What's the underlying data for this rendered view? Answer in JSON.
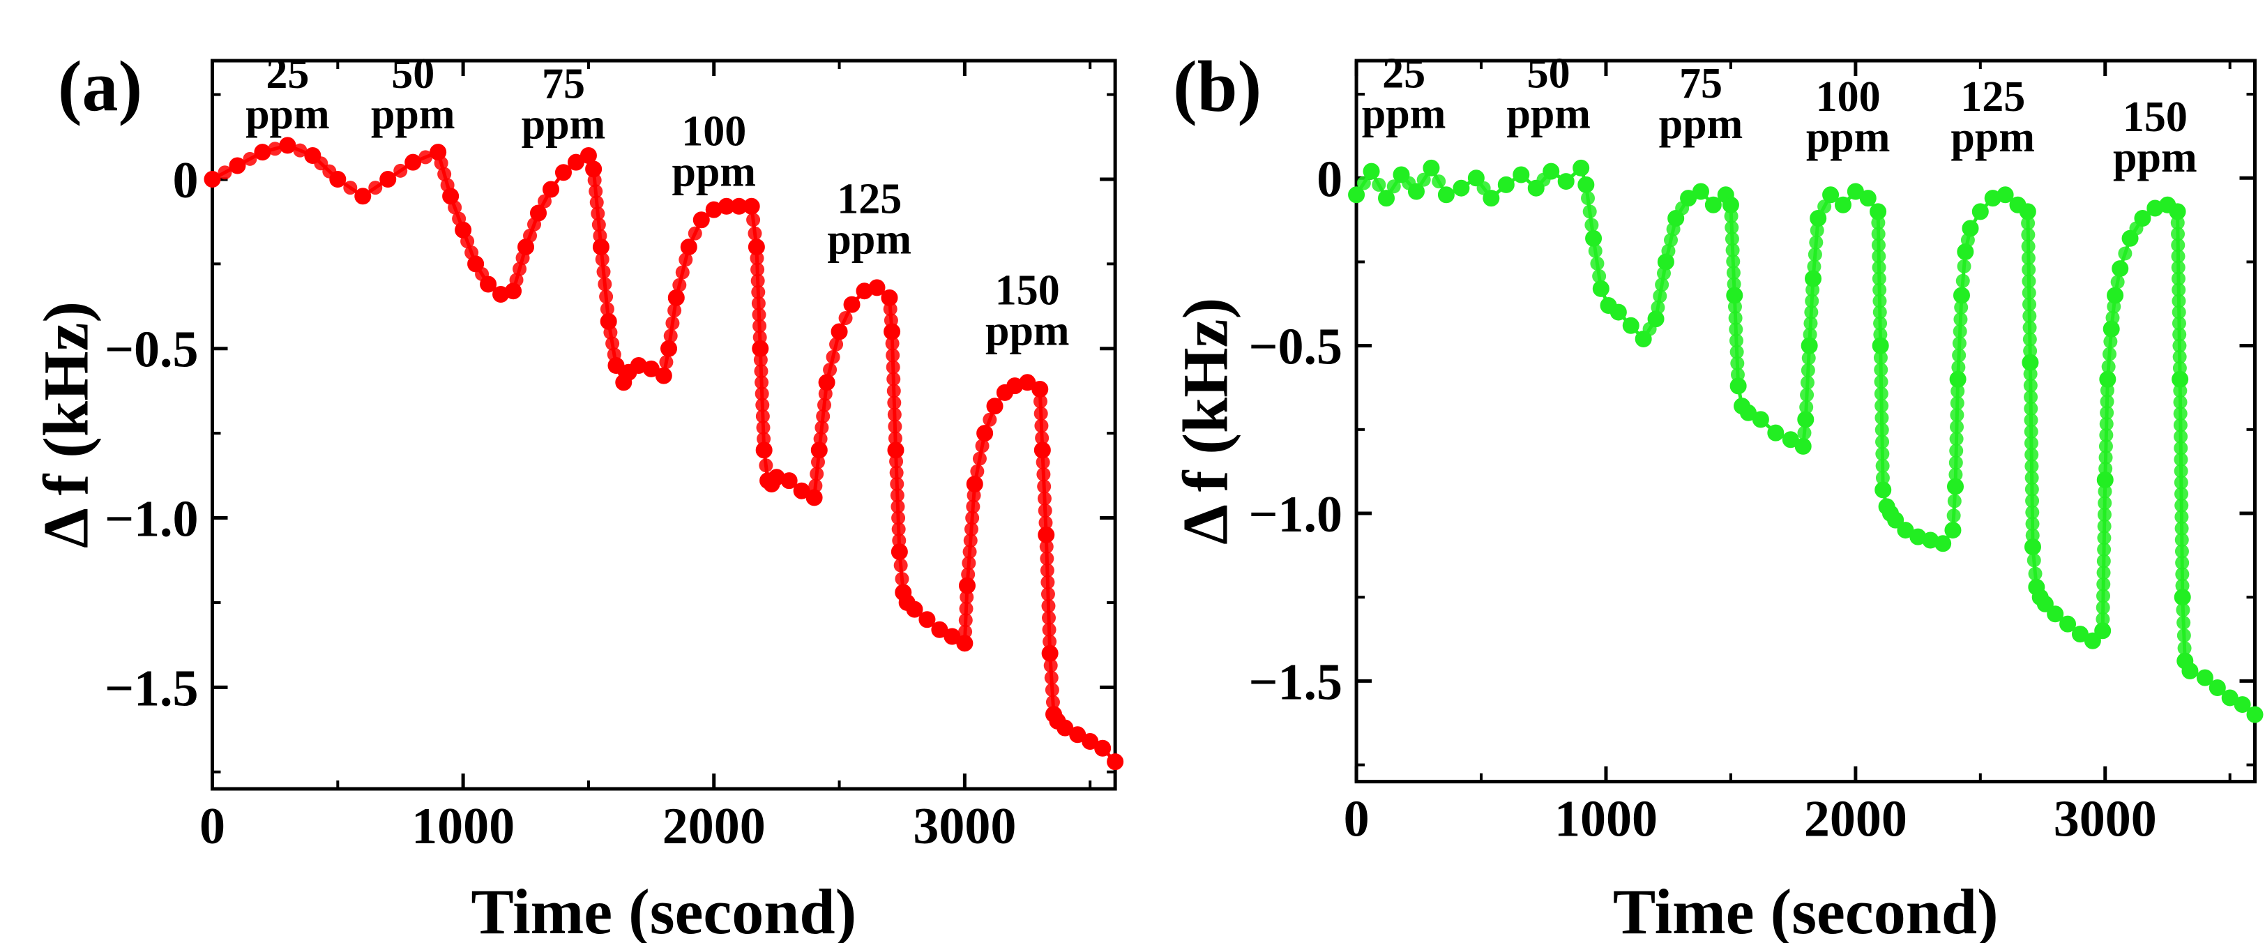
{
  "chart_data": [
    {
      "type": "line",
      "panel_label": "(a)",
      "xlabel": "Time (second)",
      "ylabel": "Δ f (kHz)",
      "xlim": [
        0,
        3600
      ],
      "ylim": [
        -1.8,
        0.35
      ],
      "xticks": [
        0,
        1000,
        2000,
        3000
      ],
      "xtick_labels": [
        "0",
        "1000",
        "2000",
        "3000"
      ],
      "yticks": [
        0,
        -0.5,
        -1.0,
        -1.5
      ],
      "ytick_labels": [
        "0",
        "−0.5",
        "−1.0",
        "−1.5"
      ],
      "color": "#ff0000",
      "marker": "circle",
      "series": [
        {
          "name": "Δ f",
          "x": [
            0,
            100,
            200,
            300,
            400,
            500,
            600,
            700,
            800,
            900,
            950,
            1000,
            1050,
            1100,
            1150,
            1200,
            1250,
            1300,
            1350,
            1400,
            1450,
            1500,
            1520,
            1550,
            1580,
            1610,
            1640,
            1660,
            1700,
            1750,
            1800,
            1820,
            1850,
            1900,
            1950,
            2000,
            2050,
            2100,
            2150,
            2170,
            2185,
            2200,
            2215,
            2230,
            2250,
            2300,
            2350,
            2400,
            2420,
            2450,
            2500,
            2550,
            2600,
            2650,
            2700,
            2710,
            2725,
            2740,
            2755,
            2770,
            2800,
            2850,
            2900,
            2950,
            3000,
            3010,
            3040,
            3080,
            3120,
            3160,
            3200,
            3250,
            3300,
            3310,
            3325,
            3340,
            3355,
            3370,
            3400,
            3450,
            3500,
            3550,
            3600
          ],
          "y": [
            0,
            0.04,
            0.08,
            0.1,
            0.07,
            0,
            -0.05,
            0,
            0.05,
            0.08,
            -0.05,
            -0.15,
            -0.25,
            -0.31,
            -0.34,
            -0.33,
            -0.2,
            -0.1,
            -0.03,
            0.02,
            0.05,
            0.07,
            0.03,
            -0.2,
            -0.42,
            -0.55,
            -0.6,
            -0.57,
            -0.55,
            -0.56,
            -0.58,
            -0.5,
            -0.35,
            -0.2,
            -0.12,
            -0.09,
            -0.08,
            -0.08,
            -0.08,
            -0.2,
            -0.5,
            -0.8,
            -0.89,
            -0.9,
            -0.88,
            -0.89,
            -0.92,
            -0.94,
            -0.8,
            -0.6,
            -0.45,
            -0.37,
            -0.33,
            -0.32,
            -0.35,
            -0.45,
            -0.8,
            -1.1,
            -1.22,
            -1.25,
            -1.27,
            -1.3,
            -1.33,
            -1.35,
            -1.37,
            -1.2,
            -0.9,
            -0.75,
            -0.67,
            -0.63,
            -0.61,
            -0.6,
            -0.62,
            -0.8,
            -1.05,
            -1.4,
            -1.58,
            -1.6,
            -1.62,
            -1.64,
            -1.66,
            -1.68,
            -1.72
          ]
        }
      ],
      "annotations": [
        {
          "lines": [
            "25",
            "ppm"
          ],
          "x": 300,
          "y": 0.27
        },
        {
          "lines": [
            "50",
            "ppm"
          ],
          "x": 800,
          "y": 0.27
        },
        {
          "lines": [
            "75",
            "ppm"
          ],
          "x": 1400,
          "y": 0.24
        },
        {
          "lines": [
            "100",
            "ppm"
          ],
          "x": 2000,
          "y": 0.1
        },
        {
          "lines": [
            "125",
            "ppm"
          ],
          "x": 2620,
          "y": -0.1
        },
        {
          "lines": [
            "150",
            "ppm"
          ],
          "x": 3250,
          "y": -0.37
        }
      ]
    },
    {
      "type": "line",
      "panel_label": "(b)",
      "xlabel": "Time (second)",
      "ylabel": "Δ f (kHz)",
      "xlim": [
        0,
        3600
      ],
      "ylim": [
        -1.8,
        0.35
      ],
      "xticks": [
        0,
        1000,
        2000,
        3000
      ],
      "xtick_labels": [
        "0",
        "1000",
        "2000",
        "3000"
      ],
      "yticks": [
        0,
        -0.5,
        -1.0,
        -1.5
      ],
      "ytick_labels": [
        "0",
        "−0.5",
        "−1.0",
        "−1.5"
      ],
      "color": "#22ee22",
      "marker": "circle",
      "series": [
        {
          "name": "Δ f",
          "x": [
            0,
            60,
            120,
            180,
            240,
            300,
            360,
            420,
            480,
            540,
            600,
            660,
            720,
            780,
            840,
            900,
            920,
            950,
            980,
            1010,
            1050,
            1100,
            1150,
            1200,
            1240,
            1280,
            1330,
            1380,
            1430,
            1480,
            1500,
            1515,
            1530,
            1545,
            1570,
            1620,
            1680,
            1740,
            1790,
            1800,
            1815,
            1830,
            1850,
            1900,
            1950,
            2000,
            2050,
            2090,
            2100,
            2110,
            2125,
            2140,
            2160,
            2200,
            2250,
            2300,
            2350,
            2390,
            2400,
            2410,
            2425,
            2440,
            2460,
            2500,
            2550,
            2600,
            2650,
            2690,
            2700,
            2710,
            2725,
            2740,
            2760,
            2800,
            2850,
            2900,
            2950,
            2990,
            3000,
            3010,
            3025,
            3040,
            3060,
            3100,
            3150,
            3200,
            3250,
            3290,
            3300,
            3310,
            3320,
            3340,
            3400,
            3450,
            3500,
            3550,
            3600
          ],
          "y": [
            -0.05,
            0.02,
            -0.06,
            0.01,
            -0.04,
            0.03,
            -0.05,
            -0.03,
            0.0,
            -0.06,
            -0.02,
            0.01,
            -0.03,
            0.02,
            -0.01,
            0.03,
            -0.02,
            -0.18,
            -0.33,
            -0.38,
            -0.4,
            -0.44,
            -0.48,
            -0.42,
            -0.25,
            -0.12,
            -0.06,
            -0.04,
            -0.08,
            -0.05,
            -0.08,
            -0.35,
            -0.62,
            -0.68,
            -0.7,
            -0.72,
            -0.76,
            -0.78,
            -0.8,
            -0.72,
            -0.5,
            -0.3,
            -0.12,
            -0.05,
            -0.08,
            -0.04,
            -0.06,
            -0.1,
            -0.5,
            -0.93,
            -0.98,
            -1.0,
            -1.02,
            -1.05,
            -1.07,
            -1.08,
            -1.09,
            -1.05,
            -0.92,
            -0.6,
            -0.35,
            -0.22,
            -0.15,
            -0.1,
            -0.06,
            -0.05,
            -0.08,
            -0.1,
            -0.55,
            -1.1,
            -1.22,
            -1.25,
            -1.27,
            -1.3,
            -1.33,
            -1.36,
            -1.38,
            -1.35,
            -0.9,
            -0.6,
            -0.45,
            -0.35,
            -0.27,
            -0.18,
            -0.12,
            -0.09,
            -0.08,
            -0.1,
            -0.6,
            -1.25,
            -1.44,
            -1.47,
            -1.49,
            -1.52,
            -1.55,
            -1.57,
            -1.6
          ]
        }
      ],
      "annotations": [
        {
          "lines": [
            "25",
            "ppm"
          ],
          "x": 190,
          "y": 0.27
        },
        {
          "lines": [
            "50",
            "ppm"
          ],
          "x": 770,
          "y": 0.27
        },
        {
          "lines": [
            "75",
            "ppm"
          ],
          "x": 1380,
          "y": 0.24
        },
        {
          "lines": [
            "100",
            "ppm"
          ],
          "x": 1970,
          "y": 0.2
        },
        {
          "lines": [
            "125",
            "ppm"
          ],
          "x": 2550,
          "y": 0.2
        },
        {
          "lines": [
            "150",
            "ppm"
          ],
          "x": 3200,
          "y": 0.14
        }
      ]
    }
  ]
}
